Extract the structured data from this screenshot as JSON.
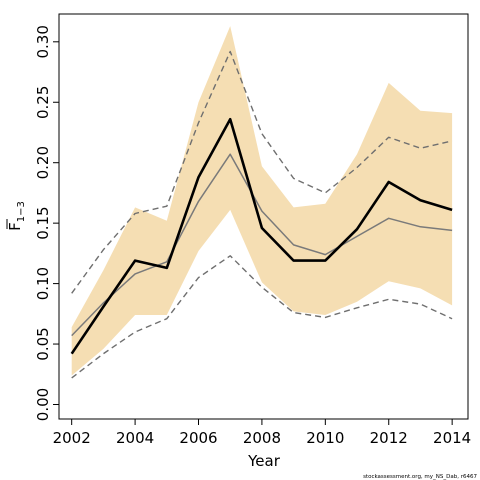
{
  "chart_data": {
    "type": "line",
    "xlabel": "Year",
    "ylabel": {
      "main": "F",
      "subscript": "1−3"
    },
    "x": [
      2002,
      2003,
      2004,
      2005,
      2006,
      2007,
      2008,
      2009,
      2010,
      2011,
      2012,
      2013,
      2014
    ],
    "xlim": [
      2001.6,
      2014.5
    ],
    "ylim": [
      -0.012,
      0.323
    ],
    "x_ticks": [
      "2002",
      "2004",
      "2006",
      "2008",
      "2010",
      "2012",
      "2014"
    ],
    "y_ticks": [
      "0.00",
      "0.05",
      "0.10",
      "0.15",
      "0.20",
      "0.25",
      "0.30"
    ],
    "grid": false,
    "legend": "none",
    "series": [
      {
        "role": "band",
        "lower": [
          0.024,
          0.046,
          0.074,
          0.074,
          0.127,
          0.161,
          0.101,
          0.077,
          0.074,
          0.085,
          0.102,
          0.096,
          0.082
        ],
        "upper": [
          0.064,
          0.111,
          0.163,
          0.152,
          0.25,
          0.313,
          0.197,
          0.163,
          0.166,
          0.207,
          0.266,
          0.243,
          0.241
        ],
        "color": "#f5deb3"
      },
      {
        "role": "dashed-upper",
        "values": [
          0.092,
          0.128,
          0.158,
          0.164,
          0.233,
          0.292,
          0.224,
          0.187,
          0.175,
          0.196,
          0.221,
          0.212,
          0.218
        ],
        "color": "#6f6f6f"
      },
      {
        "role": "dashed-lower",
        "values": [
          0.022,
          0.042,
          0.06,
          0.071,
          0.105,
          0.123,
          0.097,
          0.076,
          0.072,
          0.08,
          0.087,
          0.083,
          0.071
        ],
        "color": "#6f6f6f"
      },
      {
        "role": "grey-line",
        "values": [
          0.057,
          0.084,
          0.108,
          0.118,
          0.168,
          0.207,
          0.16,
          0.132,
          0.124,
          0.139,
          0.154,
          0.147,
          0.144
        ],
        "color": "#7a7a7a"
      },
      {
        "role": "main-line",
        "values": [
          0.042,
          0.081,
          0.119,
          0.113,
          0.188,
          0.236,
          0.146,
          0.119,
          0.119,
          0.145,
          0.184,
          0.169,
          0.161
        ],
        "color": "#000000"
      }
    ]
  },
  "footer": {
    "credit": "stockassessment.org, my_NS_Dab, r6467"
  }
}
